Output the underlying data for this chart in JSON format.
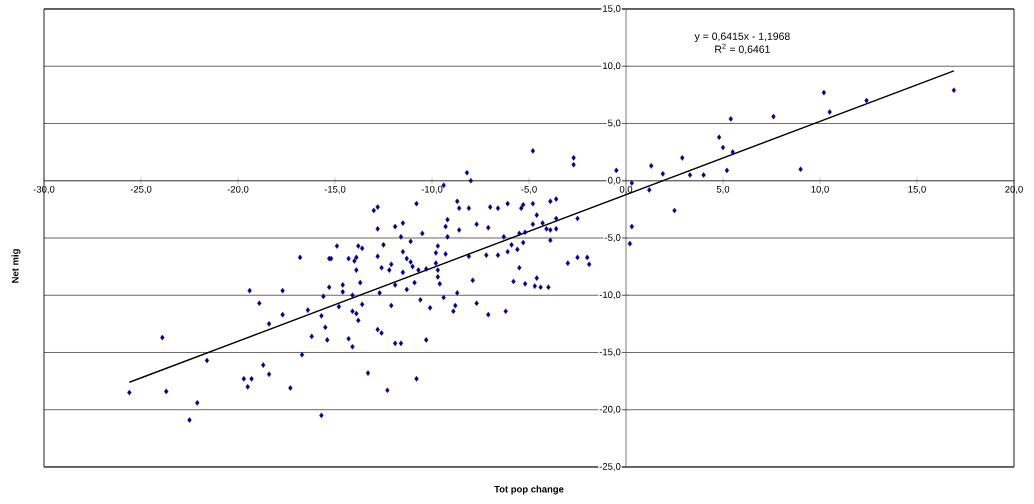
{
  "chart_data": {
    "type": "scatter",
    "xlabel": "Tot pop change",
    "ylabel": "Net mig",
    "marker": "diamond",
    "grid": "y",
    "xlim": [
      -30,
      20
    ],
    "ylim": [
      -25,
      15
    ],
    "xticks": [
      {
        "value": -30,
        "label": "-30,0"
      },
      {
        "value": -25,
        "label": "-25,0"
      },
      {
        "value": -20,
        "label": "-20,0"
      },
      {
        "value": -15,
        "label": "-15,0"
      },
      {
        "value": -10,
        "label": "-10,0"
      },
      {
        "value": -5,
        "label": "-5,0"
      },
      {
        "value": 0,
        "label": "0,0"
      },
      {
        "value": 5,
        "label": "5,0"
      },
      {
        "value": 10,
        "label": "10,0"
      },
      {
        "value": 15,
        "label": "15,0"
      },
      {
        "value": 20,
        "label": "20,0"
      }
    ],
    "yticks": [
      {
        "value": -25,
        "label": "-25,0"
      },
      {
        "value": -20,
        "label": "-20,0"
      },
      {
        "value": -15,
        "label": "-15,0"
      },
      {
        "value": -10,
        "label": "-10,0"
      },
      {
        "value": -5,
        "label": "-5,0"
      },
      {
        "value": 0,
        "label": "0,0"
      },
      {
        "value": 5,
        "label": "5,0"
      },
      {
        "value": 10,
        "label": "10,0"
      },
      {
        "value": 15,
        "label": "15,0"
      }
    ],
    "annotations": [
      "y = 0,6415x - 1,1968",
      "R$^{2}$ = 0,6461"
    ],
    "series": [
      {
        "type": "scatter",
        "color": "#000080",
        "x": [
          -25.6,
          -23.9,
          -23.7,
          -22.5,
          -22.1,
          -21.6,
          -19.7,
          -19.5,
          -19.3,
          -19.4,
          -18.9,
          -18.7,
          -18.4,
          -18.4,
          -17.7,
          -17.7,
          -17.3,
          -16.8,
          -16.7,
          -16.4,
          -16.2,
          -15.7,
          -15.6,
          -15.7,
          -15.5,
          -15.4,
          -15.3,
          -15.3,
          -15.2,
          -14.9,
          -14.8,
          -14.6,
          -14.6,
          -14.3,
          -14.3,
          -14.1,
          -14.1,
          -14.1,
          -14.0,
          -13.9,
          -13.9,
          -13.8,
          -13.8,
          -13.6,
          -13.7,
          -13.6,
          -13.9,
          -13.3,
          -13.0,
          -12.8,
          -12.8,
          -12.5,
          -12.8,
          -12.6,
          -12.2,
          -12.1,
          -12.7,
          -12.1,
          -12.8,
          -12.6,
          -12.3,
          -11.9,
          -11.5,
          -11.6,
          -11.1,
          -11.5,
          -11.3,
          -11.1,
          -11.5,
          -11.0,
          -10.9,
          -11.9,
          -11.3,
          -11.9,
          -11.6,
          -10.8,
          -10.5,
          -10.7,
          -10.3,
          -10.6,
          -10.1,
          -10.3,
          -10.8,
          -9.4,
          -9.2,
          -9.3,
          -9.2,
          -9.7,
          -9.8,
          -9.3,
          -9.7,
          -9.8,
          -9.7,
          -9.6,
          -9.4,
          -8.2,
          -8.0,
          -8.7,
          -8.6,
          -8.1,
          -8.6,
          -8.1,
          -8.9,
          -8.8,
          -8.7,
          -7.9,
          -7.7,
          -7.7,
          -7.0,
          -7.1,
          -7.2,
          -7.1,
          -6.6,
          -6.3,
          -6.6,
          -6.1,
          -6.2,
          -6.1,
          -5.9,
          -5.6,
          -5.8,
          -5.5,
          -5.4,
          -5.3,
          -5.5,
          -5.2,
          -5.3,
          -5.2,
          -4.8,
          -4.6,
          -4.8,
          -4.7,
          -4.6,
          -4.4,
          -4.3,
          -4.0,
          -3.9,
          -3.6,
          -4.1,
          -3.9,
          -3.6,
          -3.9,
          -3.6,
          -2.7,
          -2.7,
          -2.5,
          -3.0,
          -2.5,
          -2.0,
          -1.9,
          -4.8,
          -0.5,
          0.3,
          1.2,
          1.3,
          1.9,
          2.9,
          2.5,
          3.3,
          0.3,
          0.2,
          4.0,
          4.8,
          5.0,
          5.2,
          5.4,
          5.5,
          7.6,
          9.0,
          10.2,
          10.5,
          12.4,
          16.9
        ],
        "values": [
          -18.5,
          -13.7,
          -18.4,
          -20.9,
          -19.4,
          -15.7,
          -17.3,
          -18.0,
          -17.3,
          -9.6,
          -10.7,
          -16.1,
          -12.5,
          -16.9,
          -9.6,
          -11.7,
          -18.1,
          -6.7,
          -15.2,
          -11.3,
          -13.6,
          -20.5,
          -10.1,
          -11.8,
          -12.8,
          -13.9,
          -9.3,
          -6.8,
          -6.8,
          -5.7,
          -11.0,
          -9.1,
          -9.7,
          -6.8,
          -13.8,
          -14.5,
          -11.4,
          -10.0,
          -7.0,
          -6.7,
          -7.8,
          -12.2,
          -5.7,
          -5.9,
          -8.9,
          -10.8,
          -11.6,
          -16.8,
          -2.6,
          -2.3,
          -4.2,
          -5.6,
          -6.6,
          -7.6,
          -7.8,
          -7.3,
          -9.8,
          -10.9,
          -13.0,
          -13.3,
          -18.3,
          -4.0,
          -3.7,
          -4.9,
          -5.3,
          -6.2,
          -6.8,
          -7.1,
          -8.0,
          -7.5,
          -8.9,
          -9.1,
          -9.5,
          -14.2,
          -14.2,
          -2.0,
          -4.6,
          -7.8,
          -7.7,
          -10.4,
          -11.1,
          -13.9,
          -17.3,
          -0.4,
          -3.4,
          -4.0,
          -4.9,
          -5.7,
          -6.3,
          -6.4,
          -7.8,
          -7.2,
          -8.4,
          -9.0,
          -10.2,
          0.7,
          0.0,
          -1.8,
          -2.4,
          -2.4,
          -4.3,
          -6.6,
          -11.4,
          -10.9,
          -9.8,
          -8.7,
          -3.8,
          -10.7,
          -2.3,
          -4.1,
          -6.5,
          -11.7,
          -2.4,
          -4.9,
          -6.5,
          -6.2,
          -11.4,
          -2.0,
          -5.6,
          -6.0,
          -8.8,
          -7.6,
          -2.4,
          -2.1,
          -4.6,
          -4.5,
          -5.4,
          -9.0,
          -2.0,
          -3.0,
          -3.8,
          -9.2,
          -8.5,
          -9.3,
          -3.7,
          -9.3,
          -1.8,
          -1.6,
          -4.2,
          -4.3,
          -4.2,
          -5.2,
          -3.3,
          2.0,
          1.4,
          -3.3,
          -7.2,
          -6.7,
          -6.7,
          -7.3,
          2.6,
          0.9,
          -0.2,
          -0.8,
          1.3,
          0.6,
          2.0,
          -2.6,
          0.5,
          -4.0,
          -5.5,
          0.5,
          3.8,
          2.9,
          0.9,
          5.4,
          2.5,
          5.6,
          1.0,
          7.7,
          6.0,
          7.0,
          7.9
        ]
      },
      {
        "type": "line",
        "color": "#000000",
        "marker": "none",
        "x": [
          -25.6,
          16.9
        ],
        "values": [
          -17.6,
          9.6
        ]
      }
    ]
  }
}
